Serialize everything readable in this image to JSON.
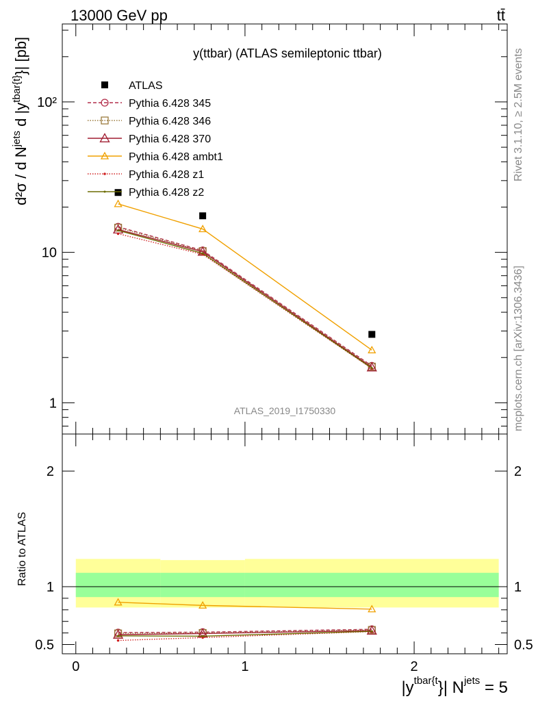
{
  "header": {
    "energy_label": "13000 GeV pp",
    "process_label": "tt̄"
  },
  "side_labels": {
    "rivet": "Rivet 3.1.10, ≥ 2.5M events",
    "mcplots": "mcplots.cern.ch [arXiv:1306.3436]"
  },
  "chart_data": [
    {
      "type": "line",
      "title": "y(ttbar) (ATLAS semileptonic ttbar)",
      "analysis_watermark": "ATLAS_2019_I1750330",
      "ylabel_parts": {
        "d2sigma": "d²σ / d N",
        "jets_sup": "jets",
        "mid": " d |y",
        "tbar_sup": "tbar{t}",
        "end": "}| [pb]"
      },
      "yscale": "log",
      "ylim": [
        0.62,
        330
      ],
      "xlim": [
        -0.08,
        2.55
      ],
      "ytick_labels": [
        "1",
        "10",
        "10²"
      ],
      "grid": false,
      "legend_position": "top-left",
      "x": [
        0.25,
        0.75,
        1.75
      ],
      "series": [
        {
          "name": "ATLAS",
          "style": "data",
          "color": "#000000",
          "values": [
            25.0,
            17.5,
            2.85
          ]
        },
        {
          "name": "Pythia 6.428 345",
          "style": "dashed-circle",
          "color": "#b22d4a",
          "values": [
            14.8,
            10.3,
            1.76
          ]
        },
        {
          "name": "Pythia 6.428 346",
          "style": "dotted-square",
          "color": "#9a7a3c",
          "values": [
            14.6,
            10.2,
            1.74
          ]
        },
        {
          "name": "Pythia 6.428 370",
          "style": "solid-triangle",
          "color": "#a01c30",
          "values": [
            14.2,
            10.1,
            1.72
          ]
        },
        {
          "name": "Pythia 6.428 ambt1",
          "style": "solid-triangle-open",
          "color": "#f0a000",
          "values": [
            21.0,
            14.3,
            2.24
          ]
        },
        {
          "name": "Pythia 6.428 z1",
          "style": "dotted-dot",
          "color": "#d02020",
          "values": [
            13.3,
            9.7,
            1.69
          ]
        },
        {
          "name": "Pythia 6.428 z2",
          "style": "solid-line",
          "color": "#6b6b00",
          "values": [
            14.0,
            9.85,
            1.7
          ]
        }
      ]
    },
    {
      "type": "line",
      "ylabel": "Ratio to ATLAS",
      "xlabel_parts": {
        "a": "|y",
        "sup": "tbar{t",
        "b": "}| N",
        "sup2": "jets",
        "c": " = 5"
      },
      "ylim": [
        0.42,
        2.32
      ],
      "xlim": [
        -0.08,
        2.55
      ],
      "ytick_labels": [
        "0.5",
        "1",
        "2"
      ],
      "xtick_labels": [
        "0",
        "1",
        "2"
      ],
      "bands": [
        {
          "name": "total uncertainty",
          "color": "#ffff99",
          "edges": [
            0,
            0.5,
            1.0,
            2.5
          ],
          "lo": [
            0.82,
            0.82,
            0.82
          ],
          "hi": [
            1.24,
            1.23,
            1.24
          ]
        },
        {
          "name": "stat uncertainty",
          "color": "#99ff99",
          "edges": [
            0,
            0.5,
            1.0,
            2.5
          ],
          "lo": [
            0.91,
            0.91,
            0.91
          ],
          "hi": [
            1.12,
            1.12,
            1.12
          ]
        }
      ],
      "x": [
        0.25,
        0.75,
        1.75
      ],
      "series": [
        {
          "name": "Pythia 6.428 345",
          "color": "#b22d4a",
          "values": [
            0.603,
            0.607,
            0.632
          ]
        },
        {
          "name": "Pythia 6.428 346",
          "color": "#9a7a3c",
          "values": [
            0.596,
            0.6,
            0.626
          ]
        },
        {
          "name": "Pythia 6.428 370",
          "color": "#a01c30",
          "values": [
            0.585,
            0.595,
            0.62
          ]
        },
        {
          "name": "Pythia 6.428 ambt1",
          "color": "#f0a000",
          "values": [
            0.865,
            0.838,
            0.806
          ]
        },
        {
          "name": "Pythia 6.428 z1",
          "color": "#d02020",
          "values": [
            0.535,
            0.56,
            0.612
          ]
        },
        {
          "name": "Pythia 6.428 z2",
          "color": "#6b6b00",
          "values": [
            0.575,
            0.572,
            0.614
          ]
        }
      ]
    }
  ]
}
